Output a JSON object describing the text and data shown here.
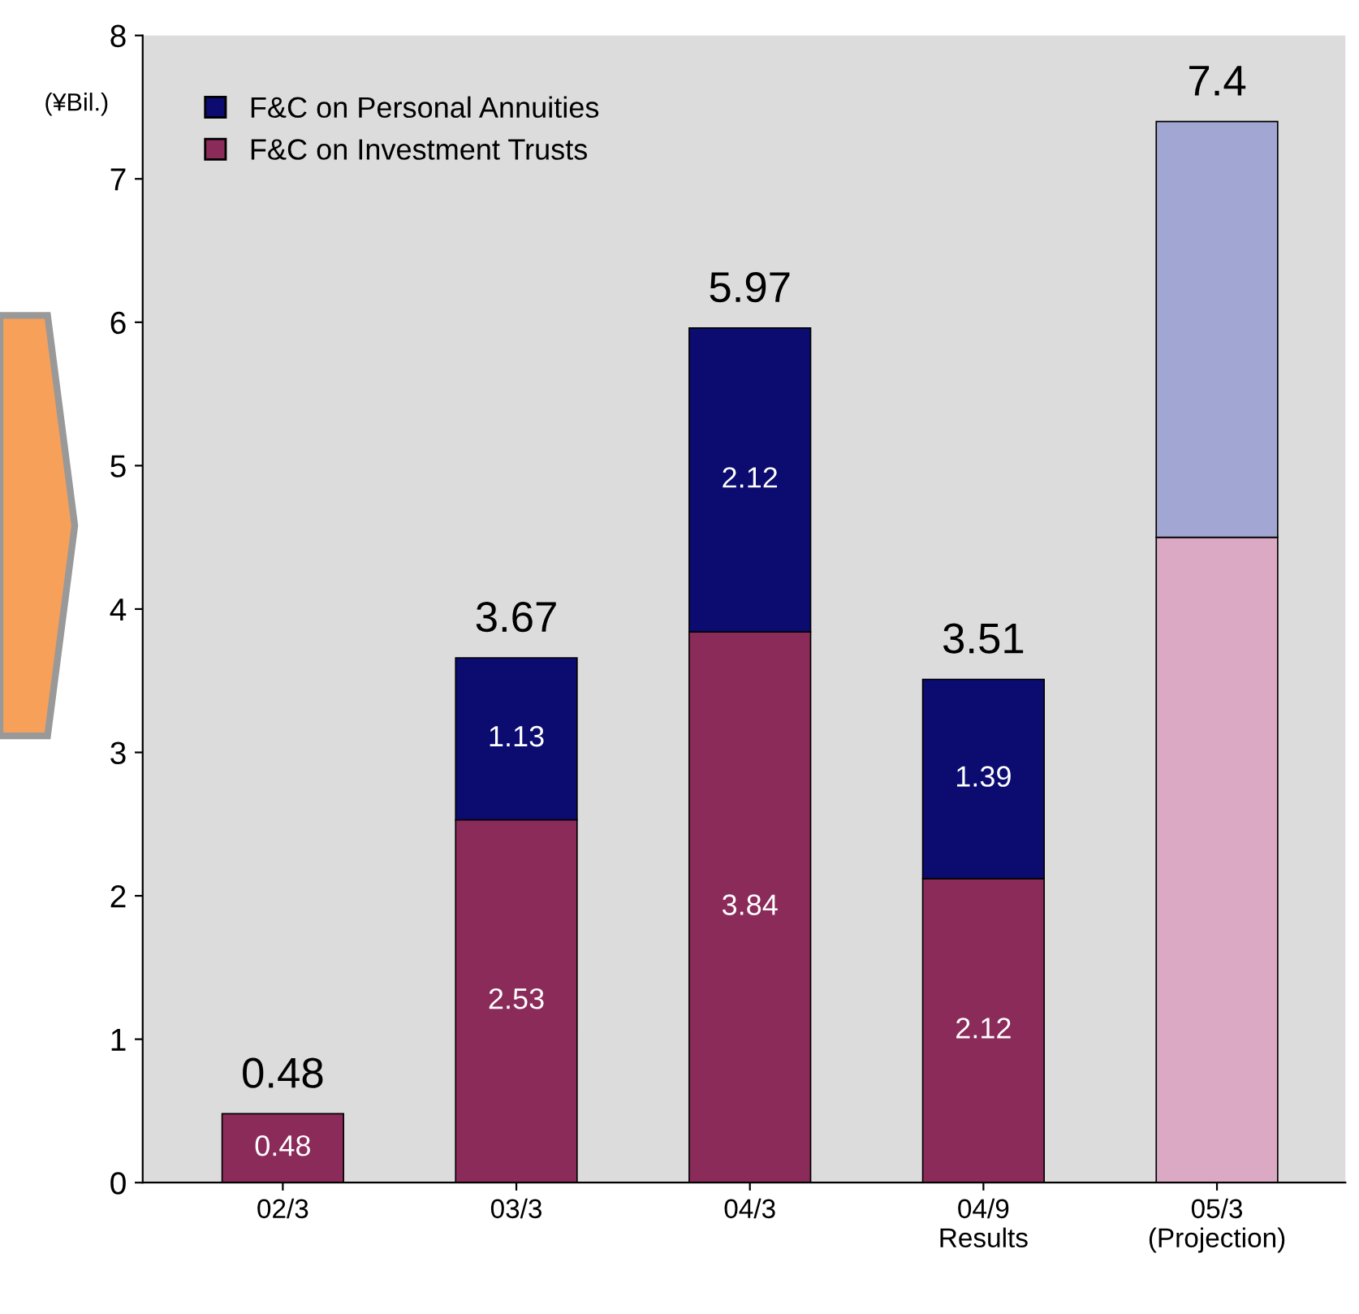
{
  "chart_data": {
    "type": "bar",
    "stacked": true,
    "ylabel": "(¥Bil.)",
    "categories": [
      "02/3",
      "03/3",
      "04/3",
      "04/9\nResults",
      "05/3\n(Projection)"
    ],
    "series": [
      {
        "name": "F&C on Investment Trusts",
        "color": "#8b2b5a",
        "colors": [
          "#8b2b5a",
          "#8b2b5a",
          "#8b2b5a",
          "#8b2b5a",
          "#dba9c4"
        ],
        "values": [
          0.48,
          2.53,
          3.84,
          2.12,
          4.5
        ],
        "value_labels": [
          "0.48",
          "2.53",
          "3.84",
          "2.12",
          null
        ]
      },
      {
        "name": "F&C on Personal Annuities",
        "color": "#0b0b70",
        "colors": [
          "#0b0b70",
          "#0b0b70",
          "#0b0b70",
          "#0b0b70",
          "#a2a6d2"
        ],
        "values": [
          null,
          1.13,
          2.12,
          1.39,
          2.9
        ],
        "value_labels": [
          null,
          "1.13",
          "2.12",
          "1.39",
          null
        ]
      }
    ],
    "totals": [
      "0.48",
      "3.67",
      "5.97",
      "3.51",
      "7.4"
    ],
    "ylim": [
      0,
      8
    ],
    "yticks": [
      0,
      1,
      2,
      3,
      4,
      5,
      6,
      7,
      8
    ],
    "legend": "top left",
    "grid": false
  }
}
